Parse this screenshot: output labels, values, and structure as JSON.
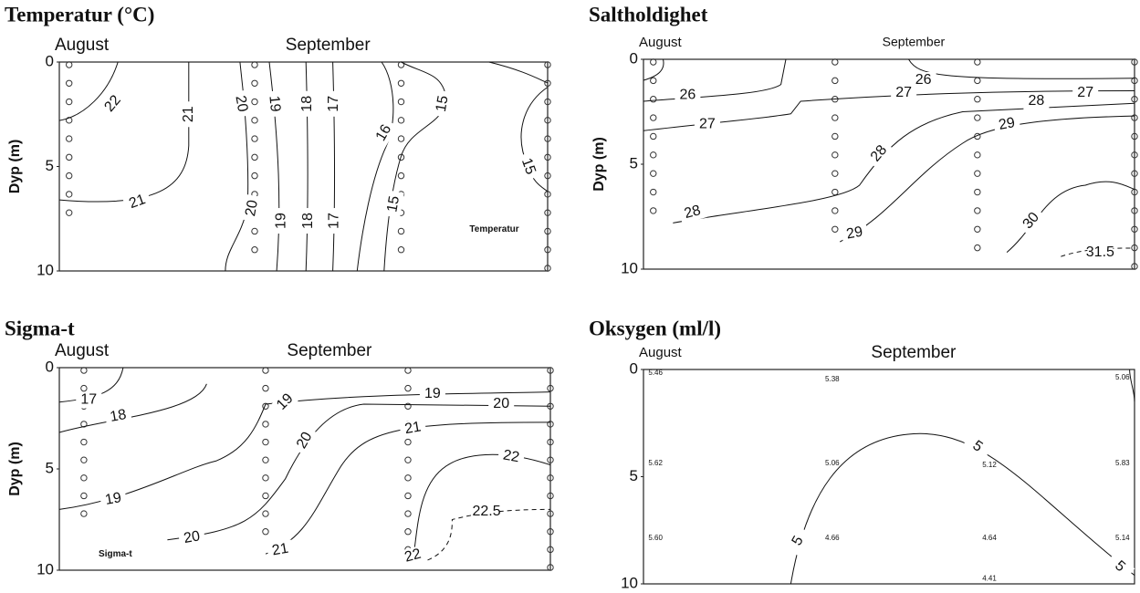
{
  "chart_data": [
    {
      "type": "contour",
      "title": "Temperatur (°C)",
      "y_label": "Dyp (m)",
      "x_labels": [
        "August",
        "September"
      ],
      "ylim": [
        0,
        10
      ],
      "yticks": [
        0,
        5,
        10
      ],
      "contour_labels": [
        22,
        21,
        21,
        20,
        20,
        19,
        19,
        18,
        18,
        17,
        17,
        16,
        15,
        15,
        15
      ],
      "annotation": "Temperatur"
    },
    {
      "type": "contour",
      "title": "Saltholdighet",
      "y_label": "Dyp (m)",
      "x_labels": [
        "August",
        "September"
      ],
      "ylim": [
        0,
        10
      ],
      "yticks": [
        0,
        5,
        10
      ],
      "contour_labels": [
        26,
        26,
        27,
        27,
        27,
        28,
        28,
        28,
        29,
        29,
        30,
        31.5
      ]
    },
    {
      "type": "contour",
      "title": "Sigma-t",
      "y_label": "Dyp (m)",
      "x_labels": [
        "August",
        "September"
      ],
      "ylim": [
        0,
        10
      ],
      "yticks": [
        0,
        5,
        10
      ],
      "contour_labels": [
        17,
        18,
        19,
        19,
        19,
        20,
        20,
        20,
        21,
        21,
        22,
        22,
        22.5
      ],
      "annotation": "Sigma-t"
    },
    {
      "type": "contour",
      "title": "Oksygen (ml/l)",
      "x_labels": [
        "August",
        "September"
      ],
      "ylim": [
        0,
        10
      ],
      "yticks": [
        0,
        5,
        10
      ],
      "contour_labels": [
        5,
        5,
        5
      ],
      "station_values": [
        5.46,
        5.38,
        5.06,
        5.62,
        5.06,
        5.12,
        5.83,
        {
          "value": 5.6,
          "label": "5.60"
        },
        4.66,
        4.64,
        5.14,
        4.41
      ]
    }
  ]
}
